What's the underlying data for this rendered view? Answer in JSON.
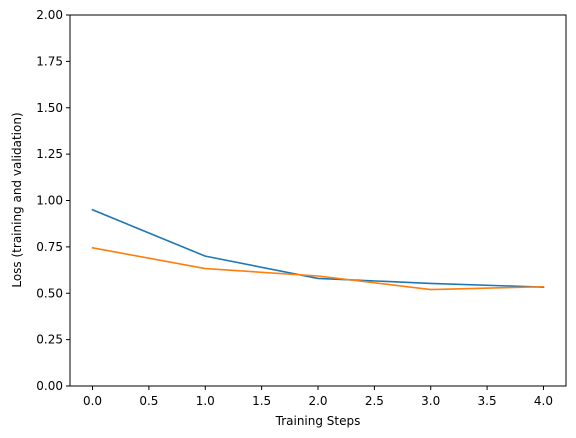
{
  "chart_data": {
    "type": "line",
    "title": "",
    "xlabel": "Training Steps",
    "ylabel": "Loss (training and validation)",
    "xlim": [
      -0.2,
      4.2
    ],
    "ylim": [
      0,
      2
    ],
    "xticks": [
      0,
      0.5,
      1,
      1.5,
      2,
      2.5,
      3,
      3.5,
      4
    ],
    "xtick_labels": [
      "0.0",
      "0.5",
      "1.0",
      "1.5",
      "2.0",
      "2.5",
      "3.0",
      "3.5",
      "4.0"
    ],
    "yticks": [
      0,
      0.25,
      0.5,
      0.75,
      1,
      1.25,
      1.5,
      1.75,
      2
    ],
    "ytick_labels": [
      "0.00",
      "0.25",
      "0.50",
      "0.75",
      "1.00",
      "1.25",
      "1.50",
      "1.75",
      "2.00"
    ],
    "grid": false,
    "legend": false,
    "x": [
      0,
      1,
      2,
      3,
      4
    ],
    "series": [
      {
        "values": [
          0.95,
          0.7,
          0.58,
          0.553,
          0.533
        ],
        "color": "#1f77b4"
      },
      {
        "values": [
          0.745,
          0.633,
          0.593,
          0.52,
          0.535
        ],
        "color": "#ff7f0e"
      }
    ]
  }
}
